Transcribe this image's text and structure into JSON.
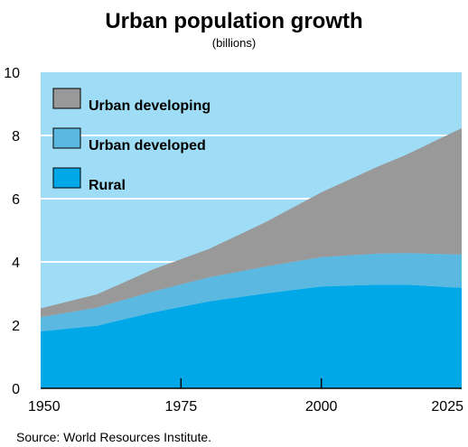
{
  "chart_data": {
    "type": "area",
    "stacked": true,
    "title": "Urban population growth",
    "subtitle": "(billions)",
    "xlabel": "",
    "ylabel": "",
    "xlim": [
      1950,
      2025
    ],
    "ylim": [
      0,
      10
    ],
    "x_ticks": [
      1950,
      1975,
      2000,
      2025
    ],
    "y_ticks": [
      0,
      2,
      4,
      6,
      8,
      10
    ],
    "grid": "horizontal",
    "legend_position": "top-left",
    "x": [
      1950,
      1960,
      1970,
      1980,
      1990,
      2000,
      2010,
      2015,
      2025
    ],
    "series": [
      {
        "name": "Rural",
        "color": "#00a8e8",
        "values": [
          1.8,
          1.98,
          2.4,
          2.75,
          3.0,
          3.22,
          3.28,
          3.28,
          3.18
        ]
      },
      {
        "name": "Urban developed",
        "color": "#5bb8e0",
        "values": [
          0.45,
          0.57,
          0.66,
          0.76,
          0.85,
          0.93,
          0.98,
          1.0,
          1.05
        ]
      },
      {
        "name": "Urban developing",
        "color": "#999999",
        "values": [
          0.28,
          0.42,
          0.7,
          0.9,
          1.4,
          2.05,
          2.75,
          3.1,
          4.0
        ]
      }
    ],
    "source": "Source: World Resources Institute.",
    "colors": {
      "plot_background": "#9fdcf5",
      "gridline": "#ffffff"
    }
  }
}
